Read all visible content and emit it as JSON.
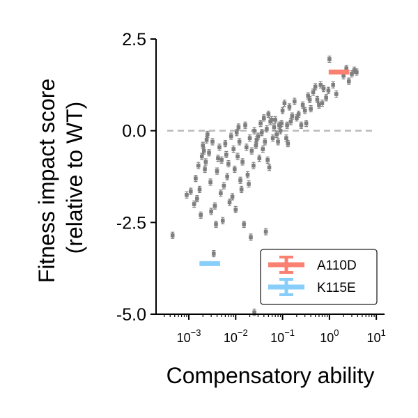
{
  "chart_data": {
    "type": "scatter",
    "title": "",
    "xlabel": "Compensatory ability",
    "ylabel_lines": [
      "Fitness impact score",
      "(relative to WT)"
    ],
    "xscale": "log",
    "xlim": [
      0.0002,
      15
    ],
    "ylim": [
      -5.0,
      2.5
    ],
    "yticks": [
      {
        "value": 2.5,
        "label": "2.5"
      },
      {
        "value": 0.0,
        "label": "0.0"
      },
      {
        "value": -2.5,
        "label": "-2.5"
      },
      {
        "value": -5.0,
        "label": "-5.0"
      }
    ],
    "xticks": [
      {
        "value": 0.001,
        "base": "10",
        "exp": "−3"
      },
      {
        "value": 0.01,
        "base": "10",
        "exp": "−2"
      },
      {
        "value": 0.1,
        "base": "10",
        "exp": "−1"
      },
      {
        "value": 1,
        "base": "10",
        "exp": "0"
      },
      {
        "value": 10,
        "base": "10",
        "exp": "1"
      }
    ],
    "reference_line": {
      "y": 0.0,
      "style": "dashed",
      "color": "#bbbbbb"
    },
    "colors": {
      "points": "#7f7f7f",
      "A110D": "#fa8072",
      "K115E": "#87cefa"
    },
    "highlighted": [
      {
        "name": "A110D",
        "x": 1.6,
        "y": 1.6,
        "xerr_log": 0.22
      },
      {
        "name": "K115E",
        "x": 0.0028,
        "y": -3.62,
        "xerr_log": 0.22
      }
    ],
    "legend": {
      "position": "bottom-right",
      "entries": [
        "A110D",
        "K115E"
      ]
    },
    "points": [
      [
        0.00045,
        -2.85
      ],
      [
        0.0009,
        -1.75
      ],
      [
        0.0011,
        -1.65
      ],
      [
        0.0013,
        -2.0
      ],
      [
        0.0014,
        -1.3
      ],
      [
        0.0015,
        -1.85
      ],
      [
        0.0016,
        -0.95
      ],
      [
        0.0017,
        -1.6
      ],
      [
        0.0018,
        -2.3
      ],
      [
        0.0019,
        -0.7
      ],
      [
        0.002,
        -0.4
      ],
      [
        0.0021,
        -0.55
      ],
      [
        0.0022,
        -1.05
      ],
      [
        0.0023,
        -0.85
      ],
      [
        0.0024,
        -0.25
      ],
      [
        0.0025,
        -0.1
      ],
      [
        0.0027,
        -0.6
      ],
      [
        0.0029,
        -1.4
      ],
      [
        0.003,
        -2.2
      ],
      [
        0.0032,
        -0.3
      ],
      [
        0.0034,
        -3.35
      ],
      [
        0.0036,
        -2.05
      ],
      [
        0.0038,
        -2.55
      ],
      [
        0.004,
        -1.1
      ],
      [
        0.0042,
        -0.75
      ],
      [
        0.0045,
        -0.45
      ],
      [
        0.0048,
        -1.7
      ],
      [
        0.005,
        -0.8
      ],
      [
        0.0053,
        -2.45
      ],
      [
        0.0056,
        -1.5
      ],
      [
        0.006,
        -0.35
      ],
      [
        0.0063,
        -0.65
      ],
      [
        0.0066,
        -1.25
      ],
      [
        0.007,
        -0.9
      ],
      [
        0.0074,
        -1.95
      ],
      [
        0.008,
        -0.15
      ],
      [
        0.0085,
        -1.8
      ],
      [
        0.009,
        -0.5
      ],
      [
        0.0095,
        -1.05
      ],
      [
        0.01,
        -2.15
      ],
      [
        0.0105,
        -0.05
      ],
      [
        0.011,
        -0.7
      ],
      [
        0.0115,
        0.1
      ],
      [
        0.012,
        -0.3
      ],
      [
        0.0126,
        -1.35
      ],
      [
        0.0133,
        -1.6
      ],
      [
        0.014,
        -0.85
      ],
      [
        0.015,
        -2.55
      ],
      [
        0.016,
        0.15
      ],
      [
        0.017,
        -0.45
      ],
      [
        0.018,
        -1.2
      ],
      [
        0.019,
        -1.45
      ],
      [
        0.02,
        -0.2
      ],
      [
        0.021,
        -2.9
      ],
      [
        0.022,
        -0.55
      ],
      [
        0.024,
        -0.95
      ],
      [
        0.025,
        0.0
      ],
      [
        0.027,
        -0.4
      ],
      [
        0.028,
        -0.25
      ],
      [
        0.03,
        -0.15
      ],
      [
        0.032,
        -0.75
      ],
      [
        0.034,
        0.2
      ],
      [
        0.036,
        -0.05
      ],
      [
        0.038,
        -0.5
      ],
      [
        0.04,
        0.35
      ],
      [
        0.042,
        -0.3
      ],
      [
        0.044,
        -2.75
      ],
      [
        0.046,
        0.05
      ],
      [
        0.048,
        -0.8
      ],
      [
        0.05,
        0.45
      ],
      [
        0.052,
        -1.0
      ],
      [
        0.055,
        0.25
      ],
      [
        0.058,
        0.3
      ],
      [
        0.062,
        -0.2
      ],
      [
        0.066,
        0.1
      ],
      [
        0.07,
        0.3
      ],
      [
        0.075,
        -0.1
      ],
      [
        0.08,
        -0.3
      ],
      [
        0.085,
        0.15
      ],
      [
        0.09,
        0.0
      ],
      [
        0.095,
        0.2
      ],
      [
        0.1,
        0.55
      ],
      [
        0.11,
        0.75
      ],
      [
        0.12,
        -0.2
      ],
      [
        0.125,
        0.15
      ],
      [
        0.13,
        -0.35
      ],
      [
        0.14,
        0.65
      ],
      [
        0.15,
        0.25
      ],
      [
        0.16,
        0.4
      ],
      [
        0.18,
        0.8
      ],
      [
        0.2,
        0.35
      ],
      [
        0.22,
        0.45
      ],
      [
        0.25,
        0.15
      ],
      [
        0.27,
        0.7
      ],
      [
        0.3,
        0.55
      ],
      [
        0.32,
        0.2
      ],
      [
        0.35,
        0.95
      ],
      [
        0.38,
        0.85
      ],
      [
        0.4,
        0.6
      ],
      [
        0.45,
        1.05
      ],
      [
        0.5,
        1.2
      ],
      [
        0.55,
        0.85
      ],
      [
        0.6,
        0.7
      ],
      [
        0.65,
        1.25
      ],
      [
        0.7,
        0.75
      ],
      [
        0.75,
        1.15
      ],
      [
        0.85,
        0.9
      ],
      [
        0.95,
        1.1
      ],
      [
        1.0,
        1.95
      ],
      [
        1.2,
        1.25
      ],
      [
        1.4,
        1.0
      ],
      [
        2.0,
        1.5
      ],
      [
        2.3,
        1.7
      ],
      [
        2.6,
        1.35
      ],
      [
        3.0,
        1.55
      ],
      [
        3.4,
        1.65
      ],
      [
        3.8,
        1.6
      ],
      [
        0.025,
        -4.95
      ]
    ]
  }
}
